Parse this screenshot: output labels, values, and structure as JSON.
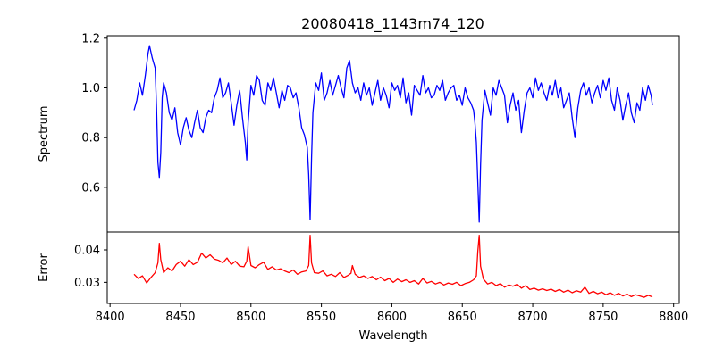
{
  "chart_data": [
    {
      "type": "line",
      "panel": "spectrum",
      "title": "20080418_1143m74_120",
      "xlabel": "",
      "ylabel": "Spectrum",
      "xlim": [
        8398,
        8804
      ],
      "ylim": [
        0.42,
        1.21
      ],
      "yticks": [
        0.6,
        0.8,
        1.0,
        1.2
      ],
      "ytick_labels": [
        "0.6",
        "0.8",
        "1.0",
        "1.2"
      ],
      "color": "#0000ff",
      "series": [
        {
          "x": [
            8417,
            8419,
            8421,
            8423,
            8425,
            8427,
            8428,
            8430,
            8432,
            8433,
            8434,
            8435,
            8436,
            8437,
            8438,
            8440,
            8442,
            8444,
            8446,
            8448,
            8450,
            8452,
            8454,
            8456,
            8458,
            8460,
            8462,
            8464,
            8466,
            8468,
            8470,
            8472,
            8474,
            8476,
            8478,
            8480,
            8482,
            8484,
            8486,
            8488,
            8490,
            8492,
            8494,
            8496,
            8497,
            8498,
            8500,
            8502,
            8504,
            8506,
            8508,
            8510,
            8512,
            8514,
            8516,
            8518,
            8520,
            8522,
            8524,
            8526,
            8528,
            8530,
            8532,
            8534,
            8536,
            8538,
            8540,
            8541,
            8542,
            8543,
            8544,
            8546,
            8548,
            8550,
            8552,
            8554,
            8556,
            8558,
            8560,
            8562,
            8564,
            8566,
            8568,
            8570,
            8572,
            8574,
            8576,
            8578,
            8580,
            8582,
            8584,
            8586,
            8588,
            8590,
            8592,
            8594,
            8596,
            8598,
            8600,
            8602,
            8604,
            8606,
            8608,
            8610,
            8612,
            8614,
            8616,
            8618,
            8620,
            8622,
            8624,
            8626,
            8628,
            8630,
            8632,
            8634,
            8636,
            8638,
            8640,
            8642,
            8644,
            8646,
            8648,
            8650,
            8652,
            8654,
            8656,
            8658,
            8659,
            8660,
            8661,
            8662,
            8663,
            8664,
            8666,
            8668,
            8670,
            8672,
            8674,
            8676,
            8678,
            8680,
            8682,
            8684,
            8686,
            8688,
            8690,
            8692,
            8694,
            8696,
            8698,
            8700,
            8702,
            8704,
            8706,
            8708,
            8710,
            8712,
            8714,
            8716,
            8718,
            8720,
            8722,
            8724,
            8726,
            8728,
            8730,
            8732,
            8734,
            8736,
            8738,
            8740,
            8742,
            8744,
            8746,
            8748,
            8750,
            8752,
            8754,
            8756,
            8758,
            8760,
            8762,
            8764,
            8766,
            8768,
            8770,
            8772,
            8774,
            8776,
            8778,
            8780,
            8782,
            8784,
            8785
          ],
          "y": [
            0.91,
            0.95,
            1.02,
            0.97,
            1.05,
            1.14,
            1.17,
            1.12,
            1.08,
            0.92,
            0.7,
            0.64,
            0.74,
            0.96,
            1.02,
            0.98,
            0.9,
            0.87,
            0.92,
            0.82,
            0.77,
            0.84,
            0.88,
            0.83,
            0.8,
            0.86,
            0.91,
            0.84,
            0.82,
            0.88,
            0.91,
            0.9,
            0.96,
            0.99,
            1.04,
            0.96,
            0.98,
            1.02,
            0.94,
            0.85,
            0.93,
            0.99,
            0.88,
            0.78,
            0.71,
            0.86,
            1.01,
            0.97,
            1.05,
            1.03,
            0.95,
            0.93,
            1.02,
            0.99,
            1.04,
            0.98,
            0.92,
            0.99,
            0.95,
            1.01,
            1.0,
            0.96,
            0.98,
            0.92,
            0.84,
            0.81,
            0.76,
            0.65,
            0.47,
            0.72,
            0.9,
            1.02,
            0.99,
            1.06,
            0.95,
            0.98,
            1.03,
            0.97,
            1.01,
            1.05,
            1.0,
            0.96,
            1.08,
            1.11,
            1.02,
            0.98,
            1.0,
            0.95,
            1.02,
            0.97,
            1.0,
            0.93,
            0.98,
            1.03,
            0.95,
            1.0,
            0.97,
            0.92,
            1.02,
            0.99,
            1.01,
            0.96,
            1.04,
            0.94,
            0.98,
            0.89,
            1.01,
            0.99,
            0.97,
            1.05,
            0.98,
            1.0,
            0.96,
            0.97,
            1.01,
            0.99,
            1.03,
            0.95,
            0.98,
            1.0,
            1.01,
            0.95,
            0.97,
            0.93,
            1.0,
            0.96,
            0.94,
            0.91,
            0.86,
            0.78,
            0.62,
            0.46,
            0.69,
            0.87,
            0.99,
            0.94,
            0.89,
            1.0,
            0.97,
            1.03,
            1.0,
            0.97,
            0.86,
            0.93,
            0.98,
            0.91,
            0.95,
            0.82,
            0.91,
            0.98,
            1.0,
            0.96,
            1.04,
            0.99,
            1.02,
            0.98,
            0.95,
            1.01,
            0.97,
            1.03,
            0.96,
            1.0,
            0.92,
            0.95,
            0.98,
            0.88,
            0.8,
            0.92,
            0.99,
            1.02,
            0.97,
            1.0,
            0.94,
            0.98,
            1.01,
            0.96,
            1.03,
            0.99,
            1.04,
            0.95,
            0.91,
            1.0,
            0.95,
            0.87,
            0.93,
            0.98,
            0.9,
            0.86,
            0.94,
            0.91,
            1.0,
            0.95,
            1.01,
            0.97,
            0.93
          ]
        }
      ]
    },
    {
      "type": "line",
      "panel": "error",
      "title": "",
      "xlabel": "Wavelength",
      "ylabel": "Error",
      "xlim": [
        8398,
        8804
      ],
      "ylim": [
        0.0235,
        0.0455
      ],
      "xticks": [
        8400,
        8450,
        8500,
        8550,
        8600,
        8650,
        8700,
        8750,
        8800
      ],
      "xtick_labels": [
        "8400",
        "8450",
        "8500",
        "8550",
        "8600",
        "8650",
        "8700",
        "8750",
        "8800"
      ],
      "yticks": [
        0.03,
        0.04
      ],
      "ytick_labels": [
        "0.03",
        "0.04"
      ],
      "color": "#ff0000",
      "series": [
        {
          "x": [
            8417,
            8420,
            8423,
            8426,
            8429,
            8432,
            8434,
            8435,
            8436,
            8438,
            8441,
            8444,
            8447,
            8450,
            8453,
            8456,
            8459,
            8462,
            8465,
            8468,
            8471,
            8474,
            8477,
            8480,
            8483,
            8486,
            8489,
            8492,
            8495,
            8497,
            8498,
            8500,
            8503,
            8506,
            8509,
            8512,
            8515,
            8518,
            8521,
            8524,
            8527,
            8530,
            8533,
            8536,
            8539,
            8541,
            8542,
            8543,
            8545,
            8548,
            8551,
            8554,
            8557,
            8560,
            8563,
            8566,
            8569,
            8571,
            8572,
            8574,
            8577,
            8580,
            8583,
            8586,
            8589,
            8592,
            8595,
            8598,
            8601,
            8604,
            8607,
            8610,
            8613,
            8616,
            8619,
            8622,
            8625,
            8628,
            8631,
            8634,
            8637,
            8640,
            8643,
            8646,
            8649,
            8652,
            8655,
            8658,
            8660,
            8661,
            8662,
            8663,
            8665,
            8668,
            8671,
            8674,
            8677,
            8680,
            8683,
            8686,
            8689,
            8692,
            8695,
            8698,
            8701,
            8704,
            8707,
            8710,
            8713,
            8716,
            8719,
            8722,
            8725,
            8728,
            8731,
            8734,
            8737,
            8740,
            8743,
            8746,
            8749,
            8752,
            8755,
            8758,
            8761,
            8764,
            8767,
            8770,
            8773,
            8776,
            8779,
            8782,
            8785
          ],
          "y": [
            0.0325,
            0.0312,
            0.032,
            0.0298,
            0.0315,
            0.033,
            0.036,
            0.042,
            0.037,
            0.033,
            0.0345,
            0.0335,
            0.0355,
            0.0365,
            0.035,
            0.037,
            0.0355,
            0.0362,
            0.039,
            0.0375,
            0.0385,
            0.0372,
            0.0368,
            0.036,
            0.0375,
            0.0355,
            0.0365,
            0.035,
            0.0348,
            0.0365,
            0.041,
            0.0352,
            0.0345,
            0.0355,
            0.0362,
            0.034,
            0.0348,
            0.0338,
            0.0342,
            0.0335,
            0.033,
            0.0338,
            0.0325,
            0.0332,
            0.0335,
            0.0352,
            0.0445,
            0.036,
            0.033,
            0.0328,
            0.0335,
            0.032,
            0.0325,
            0.0318,
            0.033,
            0.0315,
            0.0322,
            0.0328,
            0.0352,
            0.0325,
            0.0315,
            0.032,
            0.0312,
            0.0318,
            0.0308,
            0.0316,
            0.0305,
            0.0312,
            0.03,
            0.031,
            0.0302,
            0.0308,
            0.03,
            0.0305,
            0.0295,
            0.0312,
            0.0298,
            0.0303,
            0.0295,
            0.03,
            0.0292,
            0.0298,
            0.0294,
            0.03,
            0.029,
            0.0296,
            0.03,
            0.0308,
            0.032,
            0.0395,
            0.0445,
            0.035,
            0.031,
            0.0295,
            0.03,
            0.029,
            0.0296,
            0.0285,
            0.0292,
            0.0288,
            0.0294,
            0.0282,
            0.029,
            0.0278,
            0.0282,
            0.0276,
            0.028,
            0.0275,
            0.0279,
            0.0272,
            0.0278,
            0.027,
            0.0276,
            0.0268,
            0.0274,
            0.027,
            0.0285,
            0.0266,
            0.0272,
            0.0265,
            0.027,
            0.0262,
            0.0268,
            0.026,
            0.0266,
            0.0258,
            0.0264,
            0.0256,
            0.0262,
            0.0258,
            0.0254,
            0.026,
            0.0255
          ]
        }
      ]
    }
  ]
}
